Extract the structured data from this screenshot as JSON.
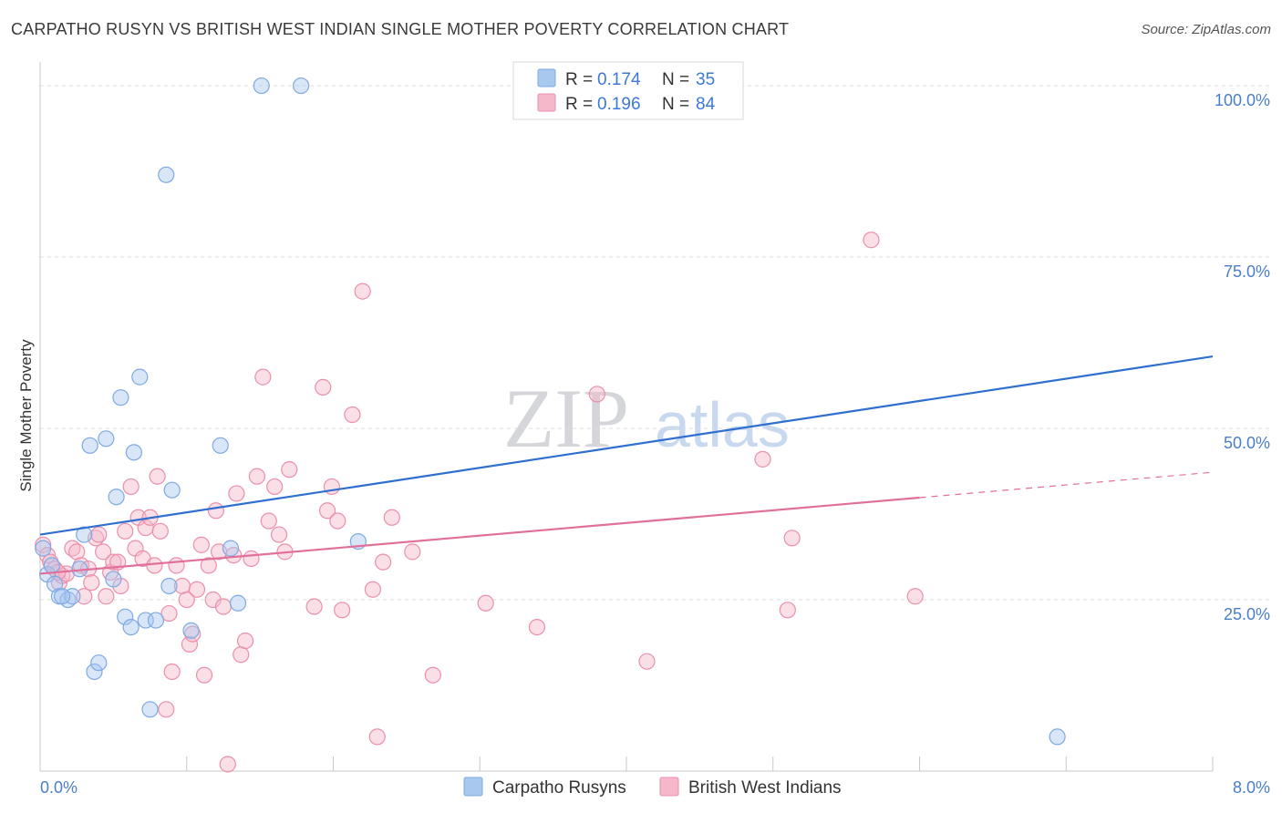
{
  "header": {
    "title": "CARPATHO RUSYN VS BRITISH WEST INDIAN SINGLE MOTHER POVERTY CORRELATION CHART",
    "source": "Source: ZipAtlas.com"
  },
  "watermark": {
    "zip": "ZIP",
    "atlas": "atlas"
  },
  "colors": {
    "blue_fill": "#a9c8f0",
    "blue_stroke": "#7fa9e3",
    "blue_line": "#2f6fd0",
    "pink_fill": "#f5b8ca",
    "pink_stroke": "#eb8fab",
    "pink_line": "#e0709a",
    "axis_label": "#4a7ec9"
  },
  "stats_legend": {
    "rows": [
      {
        "r_label": "R =",
        "r_value": "0.174",
        "n_label": "N =",
        "n_value": "35"
      },
      {
        "r_label": "R =",
        "r_value": "0.196",
        "n_label": "N =",
        "n_value": "84"
      }
    ]
  },
  "bottom_legend": {
    "items": [
      {
        "label": "Carpatho Rusyns"
      },
      {
        "label": "British West Indians"
      }
    ]
  },
  "chart_data": {
    "type": "scatter",
    "title": "CARPATHO RUSYN VS BRITISH WEST INDIAN SINGLE MOTHER POVERTY CORRELATION CHART",
    "xlabel": "",
    "ylabel": "Single Mother Poverty",
    "xlim": [
      0,
      8
    ],
    "ylim": [
      0,
      102
    ],
    "x_tick_labels": {
      "min": "0.0%",
      "max": "8.0%"
    },
    "y_ticks": [
      {
        "value": 25,
        "label": "25.0%"
      },
      {
        "value": 50,
        "label": "50.0%"
      },
      {
        "value": 75,
        "label": "75.0%"
      },
      {
        "value": 100,
        "label": "100.0%"
      }
    ],
    "series": [
      {
        "name": "Carpatho Rusyns",
        "R": 0.174,
        "N": 35,
        "trend": {
          "x0": 0,
          "y0": 34.5,
          "x1": 8,
          "y1": 60.5,
          "dashed_from": null
        },
        "points": [
          [
            0.02,
            32.5
          ],
          [
            0.05,
            28.7
          ],
          [
            0.08,
            30.0
          ],
          [
            0.1,
            27.3
          ],
          [
            0.13,
            25.5
          ],
          [
            0.19,
            25.0
          ],
          [
            0.22,
            25.5
          ],
          [
            0.27,
            29.5
          ],
          [
            0.3,
            34.5
          ],
          [
            0.34,
            47.5
          ],
          [
            0.37,
            14.5
          ],
          [
            0.4,
            15.8
          ],
          [
            0.45,
            48.5
          ],
          [
            0.5,
            28.0
          ],
          [
            0.52,
            40.0
          ],
          [
            0.55,
            54.5
          ],
          [
            0.58,
            22.5
          ],
          [
            0.62,
            21.0
          ],
          [
            0.64,
            46.5
          ],
          [
            0.68,
            57.5
          ],
          [
            0.72,
            22.0
          ],
          [
            0.75,
            9.0
          ],
          [
            0.79,
            22.0
          ],
          [
            0.86,
            87.0
          ],
          [
            0.88,
            27.0
          ],
          [
            0.9,
            41.0
          ],
          [
            1.03,
            20.5
          ],
          [
            1.23,
            47.5
          ],
          [
            1.3,
            32.5
          ],
          [
            1.35,
            24.5
          ],
          [
            1.51,
            100.0
          ],
          [
            1.78,
            100.0
          ],
          [
            2.17,
            33.5
          ],
          [
            6.94,
            5.0
          ],
          [
            0.15,
            25.5
          ]
        ]
      },
      {
        "name": "British West Indians",
        "R": 0.196,
        "N": 84,
        "trend": {
          "x0": 0,
          "y0": 28.8,
          "x1": 8,
          "y1": 43.6,
          "dashed_from": 6.0
        },
        "points": [
          [
            0.02,
            33.0
          ],
          [
            0.05,
            31.5
          ],
          [
            0.07,
            30.5
          ],
          [
            0.1,
            29.5
          ],
          [
            0.13,
            27.5
          ],
          [
            0.15,
            28.5
          ],
          [
            0.18,
            28.8
          ],
          [
            0.22,
            32.5
          ],
          [
            0.25,
            32.0
          ],
          [
            0.28,
            30.0
          ],
          [
            0.3,
            25.5
          ],
          [
            0.33,
            29.5
          ],
          [
            0.35,
            27.5
          ],
          [
            0.38,
            34.0
          ],
          [
            0.4,
            34.5
          ],
          [
            0.43,
            32.0
          ],
          [
            0.45,
            25.5
          ],
          [
            0.48,
            29.0
          ],
          [
            0.5,
            30.5
          ],
          [
            0.53,
            30.5
          ],
          [
            0.55,
            27.0
          ],
          [
            0.58,
            35.0
          ],
          [
            0.62,
            41.5
          ],
          [
            0.65,
            32.5
          ],
          [
            0.67,
            37.0
          ],
          [
            0.7,
            31.0
          ],
          [
            0.72,
            35.5
          ],
          [
            0.75,
            37.0
          ],
          [
            0.78,
            30.0
          ],
          [
            0.8,
            43.0
          ],
          [
            0.82,
            35.0
          ],
          [
            0.86,
            9.0
          ],
          [
            0.88,
            23.0
          ],
          [
            0.9,
            14.5
          ],
          [
            0.93,
            30.0
          ],
          [
            0.97,
            27.0
          ],
          [
            1.0,
            25.0
          ],
          [
            1.02,
            18.5
          ],
          [
            1.04,
            20.0
          ],
          [
            1.07,
            26.5
          ],
          [
            1.1,
            33.0
          ],
          [
            1.12,
            14.0
          ],
          [
            1.15,
            30.0
          ],
          [
            1.18,
            25.0
          ],
          [
            1.2,
            38.0
          ],
          [
            1.22,
            32.0
          ],
          [
            1.25,
            24.0
          ],
          [
            1.28,
            1.0
          ],
          [
            1.32,
            31.5
          ],
          [
            1.34,
            40.5
          ],
          [
            1.37,
            17.0
          ],
          [
            1.4,
            19.0
          ],
          [
            1.44,
            31.0
          ],
          [
            1.48,
            43.0
          ],
          [
            1.52,
            57.5
          ],
          [
            1.56,
            36.5
          ],
          [
            1.6,
            41.5
          ],
          [
            1.63,
            34.5
          ],
          [
            1.67,
            32.0
          ],
          [
            1.7,
            44.0
          ],
          [
            1.87,
            24.0
          ],
          [
            1.93,
            56.0
          ],
          [
            1.96,
            38.0
          ],
          [
            1.99,
            41.5
          ],
          [
            2.03,
            36.5
          ],
          [
            2.06,
            23.5
          ],
          [
            2.13,
            52.0
          ],
          [
            2.2,
            70.0
          ],
          [
            2.27,
            26.5
          ],
          [
            2.3,
            5.0
          ],
          [
            2.34,
            30.5
          ],
          [
            2.4,
            37.0
          ],
          [
            2.54,
            32.0
          ],
          [
            2.68,
            14.0
          ],
          [
            3.04,
            24.5
          ],
          [
            3.39,
            21.0
          ],
          [
            3.8,
            55.0
          ],
          [
            4.14,
            16.0
          ],
          [
            4.93,
            45.5
          ],
          [
            5.1,
            23.5
          ],
          [
            5.13,
            34.0
          ],
          [
            5.67,
            77.5
          ],
          [
            5.97,
            25.5
          ],
          [
            0.12,
            29.0
          ]
        ]
      }
    ]
  }
}
